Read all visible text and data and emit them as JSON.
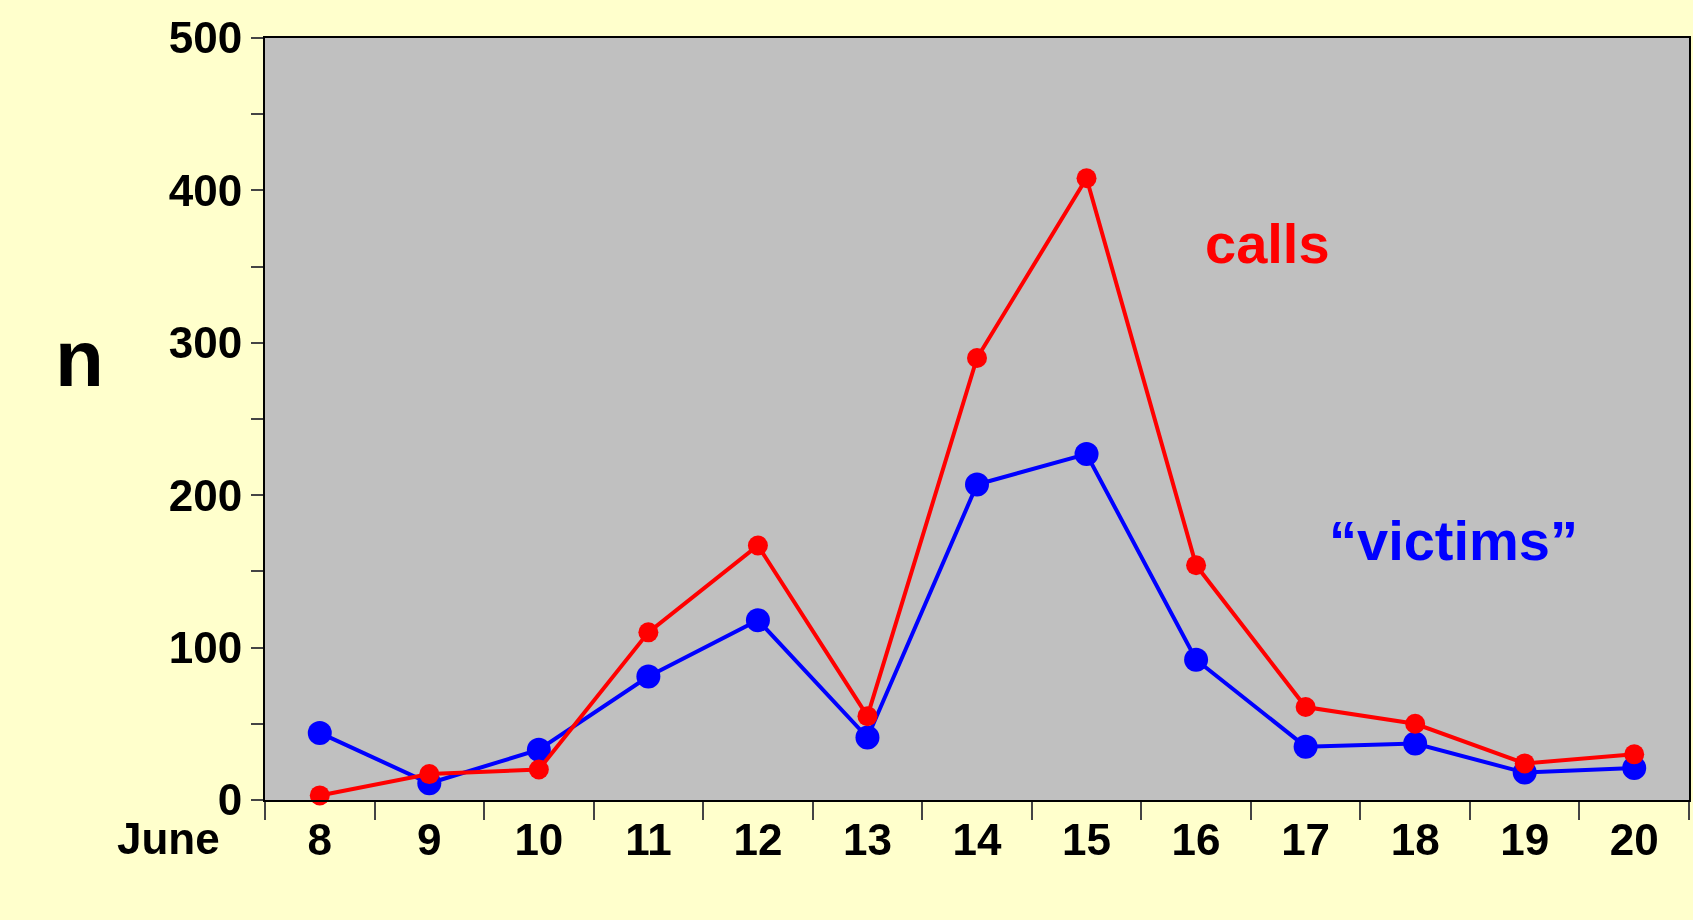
{
  "chart_data": {
    "type": "line",
    "xlabel": "June",
    "ylabel": "n",
    "categories": [
      "8",
      "9",
      "10",
      "11",
      "12",
      "13",
      "14",
      "15",
      "16",
      "17",
      "18",
      "19",
      "20"
    ],
    "series": [
      {
        "name": "calls",
        "color": "#ff0000",
        "values": [
          3,
          17,
          20,
          110,
          167,
          55,
          290,
          408,
          154,
          61,
          50,
          24,
          30
        ]
      },
      {
        "name": "“victims”",
        "color": "#0000ff",
        "values": [
          44,
          11,
          33,
          81,
          118,
          41,
          207,
          227,
          92,
          35,
          37,
          18,
          21
        ]
      }
    ],
    "ylim": [
      0,
      500
    ],
    "yticks": [
      0,
      {
        "value": 50,
        "label": null
      },
      100,
      {
        "value": 150,
        "label": null
      },
      200,
      {
        "value": 250,
        "label": null
      },
      300,
      {
        "value": 350,
        "label": null
      },
      400,
      {
        "value": 450,
        "label": null
      },
      500
    ],
    "grid": false,
    "legend": false,
    "marker": "circle",
    "line_style": "solid"
  }
}
